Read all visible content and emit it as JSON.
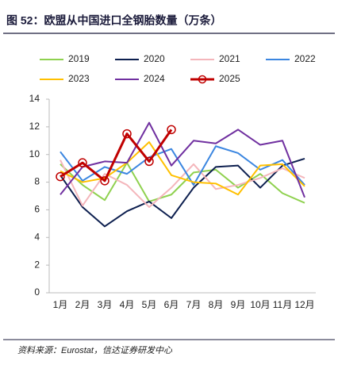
{
  "chart_data": {
    "type": "line",
    "title": "图 52：欧盟从中国进口全钢胎数量（万条）",
    "source": "资料来源：Eurostat，信达证券研发中心",
    "categories": [
      "1月",
      "2月",
      "3月",
      "4月",
      "5月",
      "6月",
      "7月",
      "8月",
      "9月",
      "10月",
      "11月",
      "12月"
    ],
    "ylim": [
      0,
      14
    ],
    "yticks": [
      0,
      2,
      4,
      6,
      8,
      10,
      12,
      14
    ],
    "grid": false,
    "legend": "top",
    "series": [
      {
        "name": "2019",
        "color": "#8fd14f",
        "values": [
          9.3,
          7.8,
          6.7,
          9.4,
          6.6,
          7.1,
          8.7,
          8.9,
          7.6,
          8.6,
          7.2,
          6.5
        ]
      },
      {
        "name": "2020",
        "color": "#0d1f4f",
        "values": [
          8.5,
          6.2,
          4.8,
          5.9,
          6.6,
          5.4,
          7.6,
          9.1,
          9.2,
          7.6,
          9.2,
          9.7
        ]
      },
      {
        "name": "2021",
        "color": "#f4b6bb",
        "values": [
          9.6,
          6.3,
          8.6,
          7.8,
          6.2,
          7.6,
          9.3,
          7.5,
          7.8,
          8.3,
          9.0,
          8.3
        ]
      },
      {
        "name": "2022",
        "color": "#3b86e0",
        "values": [
          10.2,
          8.1,
          9.1,
          8.6,
          9.8,
          10.4,
          7.8,
          10.6,
          10.1,
          8.9,
          9.6,
          7.8
        ]
      },
      {
        "name": "2023",
        "color": "#ffc000",
        "values": [
          8.8,
          8.0,
          8.3,
          9.4,
          10.9,
          8.5,
          8.0,
          7.9,
          7.1,
          9.2,
          9.3,
          7.7
        ]
      },
      {
        "name": "2024",
        "color": "#7030a0",
        "values": [
          7.1,
          9.1,
          9.5,
          9.4,
          12.3,
          9.2,
          11.0,
          10.8,
          11.8,
          10.7,
          11.0,
          6.9
        ]
      },
      {
        "name": "2025",
        "color": "#c00000",
        "marker": "circle",
        "values": [
          8.4,
          9.4,
          8.1,
          11.5,
          9.5,
          11.8,
          null,
          null,
          null,
          null,
          null,
          null
        ]
      }
    ]
  }
}
